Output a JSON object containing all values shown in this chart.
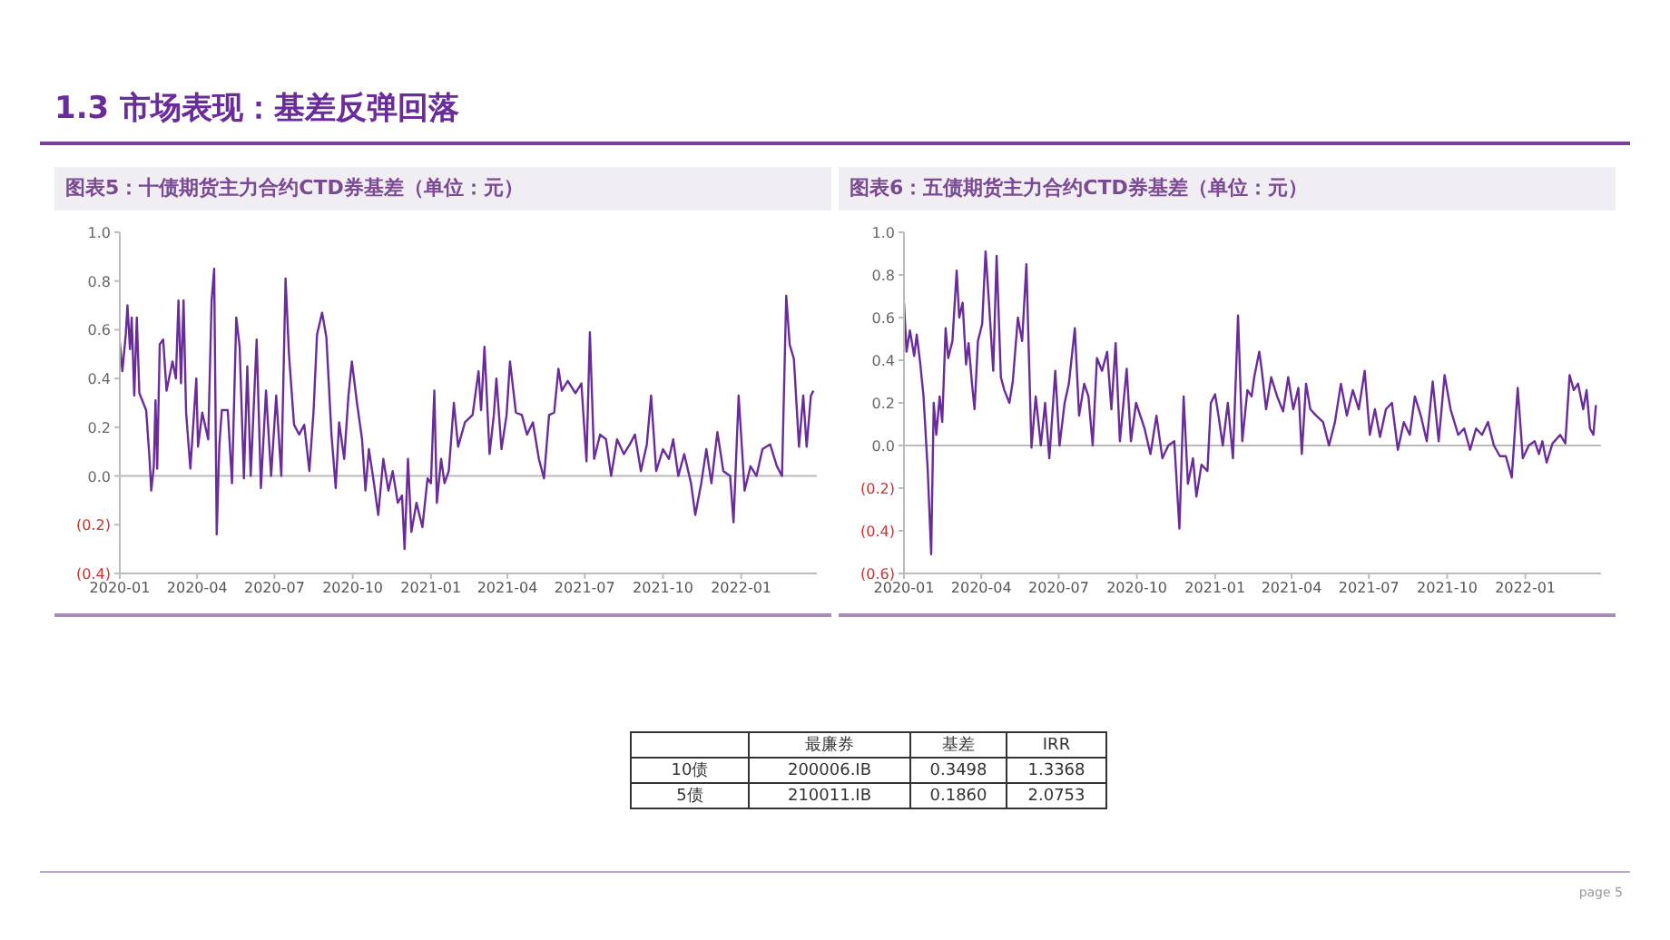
{
  "chart_data": [
    {
      "type": "other",
      "title": "1.3 市场表现：基差反弹回落",
      "annotations": [
        "page 5"
      ]
    },
    {
      "type": "line",
      "title": "图表5：十债期货主力合约CTD券基差（单位：元）",
      "color": "#6a2c9a",
      "ref_lines": [
        {
          "axis": "y",
          "value": 0
        }
      ],
      "x": [
        "2020-01-01",
        "2020-01-04",
        "2020-01-08",
        "2020-01-10",
        "2020-01-13",
        "2020-01-15",
        "2020-01-18",
        "2020-01-21",
        "2020-01-24",
        "2020-02-01",
        "2020-02-05",
        "2020-02-07",
        "2020-02-10",
        "2020-02-12",
        "2020-02-14",
        "2020-02-17",
        "2020-02-21",
        "2020-02-25",
        "2020-03-03",
        "2020-03-07",
        "2020-03-10",
        "2020-03-13",
        "2020-03-16",
        "2020-03-19",
        "2020-03-24",
        "2020-03-31",
        "2020-04-02",
        "2020-04-07",
        "2020-04-14",
        "2020-04-18",
        "2020-04-21",
        "2020-04-24",
        "2020-04-27",
        "2020-04-30",
        "2020-05-07",
        "2020-05-12",
        "2020-05-17",
        "2020-05-21",
        "2020-05-26",
        "2020-05-30",
        "2020-06-03",
        "2020-06-10",
        "2020-06-15",
        "2020-06-21",
        "2020-06-27",
        "2020-07-03",
        "2020-07-09",
        "2020-07-14",
        "2020-07-18",
        "2020-07-24",
        "2020-07-30",
        "2020-08-05",
        "2020-08-11",
        "2020-08-16",
        "2020-08-20",
        "2020-08-26",
        "2020-08-31",
        "2020-09-06",
        "2020-09-11",
        "2020-09-15",
        "2020-09-21",
        "2020-09-26",
        "2020-09-30",
        "2020-10-06",
        "2020-10-12",
        "2020-10-16",
        "2020-10-20",
        "2020-10-26",
        "2020-10-31",
        "2020-11-06",
        "2020-11-12",
        "2020-11-17",
        "2020-11-23",
        "2020-11-28",
        "2020-12-01",
        "2020-12-05",
        "2020-12-09",
        "2020-12-15",
        "2020-12-22",
        "2020-12-28",
        "2021-01-01",
        "2021-01-05",
        "2021-01-08",
        "2021-01-13",
        "2021-01-17",
        "2021-01-22",
        "2021-01-28",
        "2021-02-02",
        "2021-02-10",
        "2021-02-19",
        "2021-02-26",
        "2021-03-01",
        "2021-03-05",
        "2021-03-11",
        "2021-03-16",
        "2021-03-19",
        "2021-03-25",
        "2021-03-31",
        "2021-04-04",
        "2021-04-11",
        "2021-04-18",
        "2021-04-24",
        "2021-05-01",
        "2021-05-08",
        "2021-05-14",
        "2021-05-20",
        "2021-05-26",
        "2021-05-31",
        "2021-06-04",
        "2021-06-11",
        "2021-06-20",
        "2021-06-27",
        "2021-07-03",
        "2021-07-07",
        "2021-07-12",
        "2021-07-19",
        "2021-07-26",
        "2021-08-01",
        "2021-08-08",
        "2021-08-16",
        "2021-08-23",
        "2021-08-29",
        "2021-09-05",
        "2021-09-12",
        "2021-09-17",
        "2021-09-23",
        "2021-10-01",
        "2021-10-08",
        "2021-10-13",
        "2021-10-19",
        "2021-10-26",
        "2021-11-03",
        "2021-11-08",
        "2021-11-15",
        "2021-11-21",
        "2021-11-27",
        "2021-12-04",
        "2021-12-11",
        "2021-12-19",
        "2021-12-23",
        "2021-12-29",
        "2022-01-05",
        "2022-01-12",
        "2022-01-19",
        "2022-01-26",
        "2022-02-04",
        "2022-02-12",
        "2022-02-18",
        "2022-02-23",
        "2022-02-27",
        "2022-03-04",
        "2022-03-10",
        "2022-03-15",
        "2022-03-19",
        "2022-03-24",
        "2022-03-27"
      ],
      "values": [
        0.55,
        0.43,
        0.58,
        0.7,
        0.52,
        0.65,
        0.33,
        0.65,
        0.34,
        0.27,
        0.07,
        -0.06,
        0.04,
        0.31,
        0.03,
        0.54,
        0.56,
        0.35,
        0.47,
        0.4,
        0.72,
        0.38,
        0.72,
        0.26,
        0.03,
        0.4,
        0.12,
        0.26,
        0.15,
        0.72,
        0.85,
        -0.24,
        0.12,
        0.27,
        0.27,
        -0.03,
        0.65,
        0.53,
        -0.01,
        0.45,
        0,
        0.56,
        -0.05,
        0.35,
        0,
        0.33,
        0,
        0.81,
        0.5,
        0.21,
        0.17,
        0.21,
        0.02,
        0.27,
        0.58,
        0.67,
        0.57,
        0.17,
        -0.05,
        0.22,
        0.07,
        0.33,
        0.47,
        0.3,
        0.15,
        -0.06,
        0.11,
        -0.03,
        -0.16,
        0.07,
        -0.06,
        0.02,
        -0.11,
        -0.08,
        -0.3,
        0.07,
        -0.23,
        -0.11,
        -0.21,
        -0.01,
        -0.03,
        0.35,
        -0.11,
        0.07,
        -0.03,
        0.02,
        0.3,
        0.12,
        0.22,
        0.25,
        0.43,
        0.27,
        0.53,
        0.09,
        0.25,
        0.4,
        0.11,
        0.25,
        0.47,
        0.26,
        0.25,
        0.17,
        0.22,
        0.07,
        -0.01,
        0.25,
        0.26,
        0.44,
        0.35,
        0.39,
        0.34,
        0.38,
        0.06,
        0.59,
        0.07,
        0.17,
        0.15,
        0,
        0.15,
        0.09,
        0.13,
        0.17,
        0.02,
        0.13,
        0.33,
        0.02,
        0.11,
        0.07,
        0.15,
        0,
        0.09,
        -0.03,
        -0.16,
        -0.03,
        0.11,
        -0.03,
        0.18,
        0.02,
        0,
        -0.19,
        0.33,
        -0.06,
        0.04,
        0,
        0.11,
        0.13,
        0.04,
        0,
        0.74,
        0.54,
        0.48,
        0.12,
        0.33,
        0.12,
        0.33,
        0.35
      ],
      "xlim": [
        "2020-01-01",
        "2022-03-31"
      ],
      "xticks": [
        "2020-01",
        "2020-04",
        "2020-07",
        "2020-10",
        "2021-01",
        "2021-04",
        "2021-07",
        "2021-10",
        "2022-01"
      ],
      "ylim": [
        -0.4,
        1.0
      ],
      "yticks": [
        {
          "value": -0.4,
          "label": "(0.4)"
        },
        {
          "value": -0.2,
          "label": "(0.2)"
        },
        {
          "value": 0,
          "label": "0.0"
        },
        {
          "value": 0.2,
          "label": "0.2"
        },
        {
          "value": 0.4,
          "label": "0.4"
        },
        {
          "value": 0.6,
          "label": "0.6"
        },
        {
          "value": 0.8,
          "label": "0.8"
        },
        {
          "value": 1.0,
          "label": "1.0"
        }
      ]
    },
    {
      "type": "line",
      "title": "图表6：五债期货主力合约CTD券基差（单位：元）",
      "color": "#6a2c9a",
      "ref_lines": [
        {
          "axis": "y",
          "value": 0
        }
      ],
      "x": [
        "2020-01-01",
        "2020-01-04",
        "2020-01-08",
        "2020-01-13",
        "2020-01-16",
        "2020-01-20",
        "2020-01-24",
        "2020-01-29",
        "2020-02-02",
        "2020-02-05",
        "2020-02-08",
        "2020-02-12",
        "2020-02-15",
        "2020-02-19",
        "2020-02-22",
        "2020-02-27",
        "2020-03-03",
        "2020-03-06",
        "2020-03-10",
        "2020-03-14",
        "2020-03-17",
        "2020-03-21",
        "2020-03-24",
        "2020-03-28",
        "2020-04-02",
        "2020-04-06",
        "2020-04-10",
        "2020-04-15",
        "2020-04-19",
        "2020-04-24",
        "2020-04-28",
        "2020-05-04",
        "2020-05-08",
        "2020-05-14",
        "2020-05-19",
        "2020-05-24",
        "2020-05-30",
        "2020-06-04",
        "2020-06-10",
        "2020-06-15",
        "2020-06-20",
        "2020-06-27",
        "2020-07-02",
        "2020-07-08",
        "2020-07-13",
        "2020-07-20",
        "2020-07-25",
        "2020-07-31",
        "2020-08-05",
        "2020-08-10",
        "2020-08-15",
        "2020-08-21",
        "2020-08-27",
        "2020-09-01",
        "2020-09-06",
        "2020-09-11",
        "2020-09-19",
        "2020-09-24",
        "2020-09-30",
        "2020-10-10",
        "2020-10-17",
        "2020-10-24",
        "2020-10-31",
        "2020-11-07",
        "2020-11-14",
        "2020-11-20",
        "2020-11-25",
        "2020-11-30",
        "2020-12-06",
        "2020-12-10",
        "2020-12-16",
        "2020-12-23",
        "2020-12-27",
        "2021-01-01",
        "2021-01-05",
        "2021-01-10",
        "2021-01-16",
        "2021-01-22",
        "2021-01-28",
        "2021-02-02",
        "2021-02-08",
        "2021-02-13",
        "2021-02-16",
        "2021-02-22",
        "2021-02-25",
        "2021-03-02",
        "2021-03-08",
        "2021-03-15",
        "2021-03-22",
        "2021-03-28",
        "2021-04-03",
        "2021-04-09",
        "2021-04-13",
        "2021-04-18",
        "2021-04-23",
        "2021-04-30",
        "2021-05-08",
        "2021-05-15",
        "2021-05-22",
        "2021-05-29",
        "2021-06-05",
        "2021-06-12",
        "2021-06-19",
        "2021-06-26",
        "2021-07-02",
        "2021-07-08",
        "2021-07-14",
        "2021-07-21",
        "2021-07-28",
        "2021-08-04",
        "2021-08-11",
        "2021-08-18",
        "2021-08-24",
        "2021-08-31",
        "2021-09-07",
        "2021-09-14",
        "2021-09-21",
        "2021-09-28",
        "2021-10-05",
        "2021-10-14",
        "2021-10-21",
        "2021-10-28",
        "2021-11-04",
        "2021-11-11",
        "2021-11-18",
        "2021-11-25",
        "2021-12-02",
        "2021-12-09",
        "2021-12-16",
        "2021-12-23",
        "2021-12-29",
        "2022-01-05",
        "2022-01-12",
        "2022-01-17",
        "2022-01-21",
        "2022-01-26",
        "2022-02-02",
        "2022-02-11",
        "2022-02-17",
        "2022-02-22",
        "2022-02-27",
        "2022-03-04",
        "2022-03-10",
        "2022-03-14",
        "2022-03-18",
        "2022-03-22",
        "2022-03-25"
      ],
      "values": [
        0.67,
        0.44,
        0.54,
        0.42,
        0.52,
        0.39,
        0.23,
        -0.12,
        -0.51,
        0.2,
        0.05,
        0.23,
        0.11,
        0.55,
        0.41,
        0.49,
        0.82,
        0.6,
        0.67,
        0.38,
        0.48,
        0.29,
        0.17,
        0.49,
        0.57,
        0.91,
        0.67,
        0.35,
        0.89,
        0.32,
        0.26,
        0.2,
        0.3,
        0.6,
        0.49,
        0.85,
        -0.01,
        0.23,
        0,
        0.2,
        -0.06,
        0.35,
        0,
        0.2,
        0.29,
        0.55,
        0.14,
        0.29,
        0.23,
        0,
        0.41,
        0.35,
        0.44,
        0.17,
        0.48,
        0.02,
        0.36,
        0.02,
        0.2,
        0.08,
        -0.04,
        0.14,
        -0.06,
        0,
        0.02,
        -0.39,
        0.23,
        -0.18,
        -0.06,
        -0.24,
        -0.09,
        -0.12,
        0.2,
        0.24,
        0.14,
        0,
        0.2,
        -0.06,
        0.61,
        0.02,
        0.26,
        0.23,
        0.32,
        0.44,
        0.35,
        0.17,
        0.32,
        0.23,
        0.16,
        0.32,
        0.17,
        0.27,
        -0.04,
        0.29,
        0.17,
        0.14,
        0.11,
        0,
        0.11,
        0.29,
        0.14,
        0.26,
        0.17,
        0.35,
        0.05,
        0.17,
        0.04,
        0.17,
        0.2,
        -0.02,
        0.11,
        0.05,
        0.23,
        0.14,
        0.02,
        0.3,
        0.02,
        0.33,
        0.17,
        0.05,
        0.08,
        -0.02,
        0.08,
        0.05,
        0.11,
        0,
        -0.05,
        -0.05,
        -0.15,
        0.27,
        -0.06,
        0,
        0.02,
        -0.04,
        0.02,
        -0.08,
        0.01,
        0.05,
        0.01,
        0.33,
        0.26,
        0.29,
        0.17,
        0.26,
        0.08,
        0.05,
        0.19
      ],
      "xlim": [
        "2020-01-01",
        "2022-03-31"
      ],
      "xticks": [
        "2020-01",
        "2020-04",
        "2020-07",
        "2020-10",
        "2021-01",
        "2021-04",
        "2021-07",
        "2021-10",
        "2022-01"
      ],
      "ylim": [
        -0.6,
        1.0
      ],
      "yticks": [
        {
          "value": -0.6,
          "label": "(0.6)"
        },
        {
          "value": -0.4,
          "label": "(0.4)"
        },
        {
          "value": -0.2,
          "label": "(0.2)"
        },
        {
          "value": 0,
          "label": "0.0"
        },
        {
          "value": 0.2,
          "label": "0.2"
        },
        {
          "value": 0.4,
          "label": "0.4"
        },
        {
          "value": 0.6,
          "label": "0.6"
        },
        {
          "value": 0.8,
          "label": "0.8"
        },
        {
          "value": 1.0,
          "label": "1.0"
        }
      ]
    },
    {
      "type": "other",
      "annotations": [
        "最廉券",
        "基差",
        "IRR",
        "10债",
        "200006.IB",
        "0.3498",
        "1.3368",
        "5债",
        "210011.IB",
        "0.1860",
        "2.0753"
      ]
    }
  ]
}
